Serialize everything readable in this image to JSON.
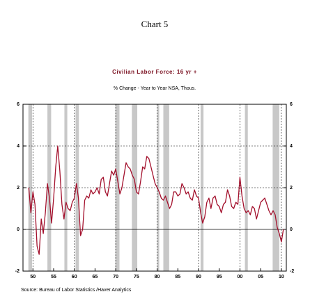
{
  "chart_data": {
    "type": "line",
    "title": "Chart 5",
    "subtitle": "Civilian Labor Force: 16 yr +",
    "note": "% Change - Year to Year   NSA, Thous.",
    "source": "Source:  Bureau of Labor Statistics /Haver Analytics",
    "xlim": [
      1947.6,
      2011.2
    ],
    "ylim": [
      -2,
      6
    ],
    "yticks": [
      -2,
      0,
      2,
      4,
      6
    ],
    "xticks": [
      {
        "value": 1950,
        "label": "50"
      },
      {
        "value": 1955,
        "label": "55"
      },
      {
        "value": 1960,
        "label": "60"
      },
      {
        "value": 1965,
        "label": "65"
      },
      {
        "value": 1970,
        "label": "70"
      },
      {
        "value": 1975,
        "label": "75"
      },
      {
        "value": 1980,
        "label": "80"
      },
      {
        "value": 1985,
        "label": "85"
      },
      {
        "value": 1990,
        "label": "90"
      },
      {
        "value": 1995,
        "label": "95"
      },
      {
        "value": 2000,
        "label": "00"
      },
      {
        "value": 2005,
        "label": "05"
      },
      {
        "value": 2010,
        "label": "10"
      }
    ],
    "recessions": [
      [
        1948.9,
        1949.8
      ],
      [
        1953.5,
        1954.4
      ],
      [
        1957.6,
        1958.3
      ],
      [
        1960.3,
        1961.1
      ],
      [
        1969.9,
        1970.9
      ],
      [
        1973.9,
        1975.2
      ],
      [
        1980.0,
        1980.5
      ],
      [
        1981.5,
        1982.9
      ],
      [
        1990.5,
        1991.2
      ],
      [
        2001.2,
        2001.9
      ],
      [
        2007.9,
        2009.5
      ]
    ],
    "recession_color": "#c8c8c8",
    "x": [
      1949,
      1949.5,
      1950,
      1950.5,
      1951,
      1951.5,
      1952,
      1952.5,
      1953,
      1953.5,
      1954,
      1954.5,
      1955,
      1955.5,
      1956,
      1956.5,
      1957,
      1957.5,
      1958,
      1958.5,
      1959,
      1959.5,
      1960,
      1960.5,
      1961,
      1961.5,
      1962,
      1962.5,
      1963,
      1963.5,
      1964,
      1964.5,
      1965,
      1965.5,
      1966,
      1966.5,
      1967,
      1967.5,
      1968,
      1968.5,
      1969,
      1969.5,
      1970,
      1970.5,
      1971,
      1971.5,
      1972,
      1972.5,
      1973,
      1973.5,
      1974,
      1974.5,
      1975,
      1975.5,
      1976,
      1976.5,
      1977,
      1977.5,
      1978,
      1978.5,
      1979,
      1979.5,
      1980,
      1980.5,
      1981,
      1981.5,
      1982,
      1982.5,
      1983,
      1983.5,
      1984,
      1984.5,
      1985,
      1985.5,
      1986,
      1986.5,
      1987,
      1987.5,
      1988,
      1988.5,
      1989,
      1989.5,
      1990,
      1990.5,
      1991,
      1991.5,
      1992,
      1992.5,
      1993,
      1993.5,
      1994,
      1994.5,
      1995,
      1995.5,
      1996,
      1996.5,
      1997,
      1997.5,
      1998,
      1998.5,
      1999,
      1999.5,
      2000,
      2000.5,
      2001,
      2001.5,
      2002,
      2002.5,
      2003,
      2003.5,
      2004,
      2004.5,
      2005,
      2005.5,
      2006,
      2006.5,
      2007,
      2007.5,
      2008,
      2008.5,
      2009,
      2009.5,
      2010,
      2010.5
    ],
    "series": [
      {
        "color": "#a3102c",
        "values": [
          2.0,
          0.8,
          1.8,
          1.2,
          -0.8,
          -1.2,
          0.5,
          -0.2,
          0.8,
          2.2,
          1.5,
          0.3,
          1.5,
          3.0,
          4.0,
          2.8,
          1.2,
          0.5,
          1.3,
          1.0,
          0.9,
          1.3,
          1.5,
          2.2,
          1.5,
          -0.3,
          0.0,
          1.4,
          1.6,
          1.5,
          1.9,
          1.7,
          1.8,
          2.0,
          1.7,
          2.4,
          2.5,
          1.8,
          1.6,
          2.2,
          2.8,
          2.6,
          2.9,
          2.3,
          1.7,
          2.0,
          2.6,
          3.2,
          3.0,
          2.9,
          2.6,
          2.4,
          1.8,
          1.7,
          2.3,
          3.0,
          2.9,
          3.5,
          3.4,
          3.0,
          2.6,
          2.2,
          2.0,
          1.8,
          1.5,
          1.4,
          1.6,
          1.3,
          1.0,
          1.2,
          1.8,
          1.8,
          1.6,
          1.7,
          2.2,
          2.0,
          1.7,
          1.8,
          1.5,
          1.4,
          1.9,
          1.6,
          1.5,
          0.8,
          0.3,
          0.6,
          1.3,
          1.5,
          1.0,
          1.5,
          1.6,
          1.2,
          1.1,
          0.8,
          1.2,
          1.3,
          1.9,
          1.6,
          1.1,
          1.0,
          1.3,
          1.2,
          2.5,
          1.6,
          1.0,
          0.8,
          0.9,
          0.7,
          1.1,
          1.0,
          0.5,
          0.9,
          1.3,
          1.4,
          1.5,
          1.2,
          0.9,
          0.7,
          0.9,
          0.7,
          0.1,
          -0.2,
          -0.6,
          0.0
        ]
      }
    ]
  }
}
